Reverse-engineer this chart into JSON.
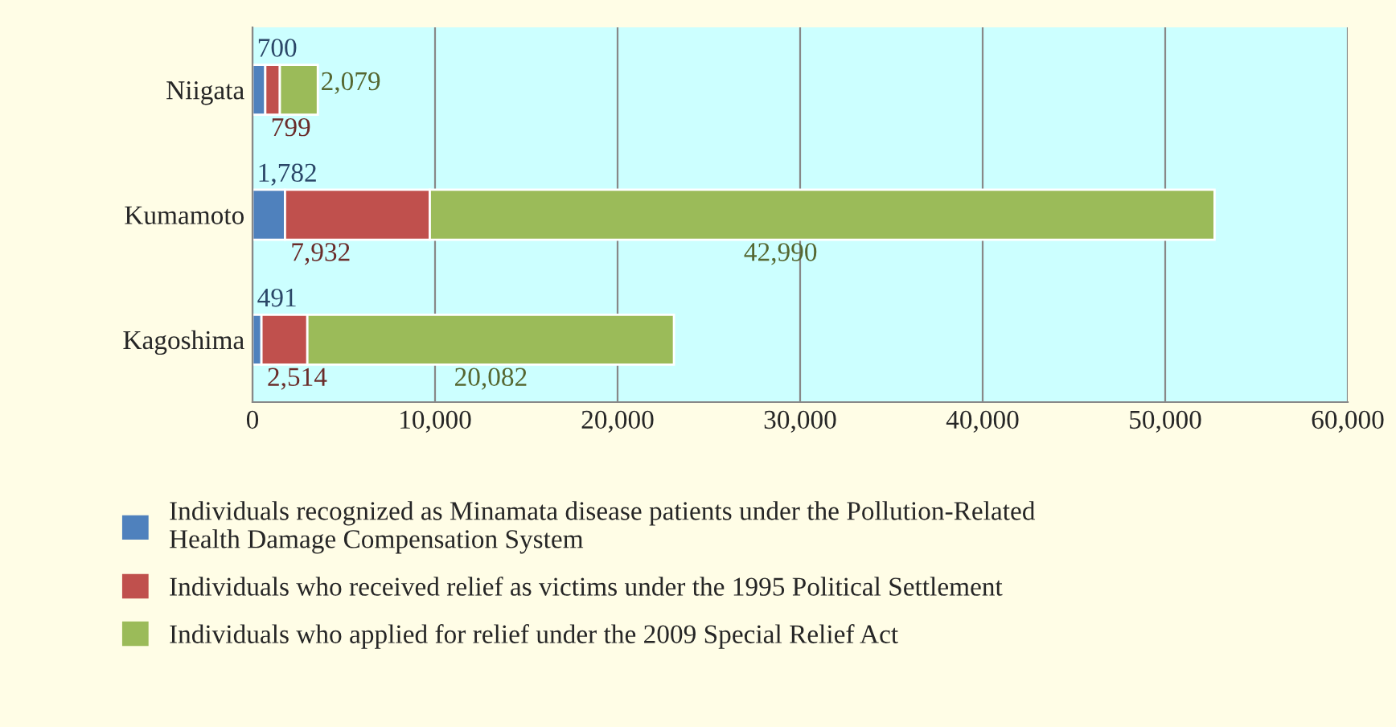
{
  "chart_data": {
    "type": "bar",
    "orientation": "horizontal",
    "stacked": true,
    "categories": [
      "Niigata",
      "Kumamoto",
      "Kagoshima"
    ],
    "series": [
      {
        "name": "Individuals recognized as Minamata disease patients under the Pollution-Related Health Damage Compensation System",
        "color": "#4f81bd",
        "values": [
          700,
          1782,
          491
        ],
        "value_labels": [
          "700",
          "1,782",
          "491"
        ]
      },
      {
        "name": "Individuals who received relief as victims under the 1995 Political Settlement",
        "color": "#c0504d",
        "values": [
          799,
          7932,
          2514
        ],
        "value_labels": [
          "799",
          "7,932",
          "2,514"
        ]
      },
      {
        "name": "Individuals who applied for relief under the 2009 Special Relief Act",
        "color": "#9bbb59",
        "values": [
          2079,
          42990,
          20082
        ],
        "value_labels": [
          "2,079",
          "42,990",
          "20,082"
        ]
      }
    ],
    "xlim": [
      0,
      60000
    ],
    "xticks": [
      {
        "value": 0,
        "label": "0"
      },
      {
        "value": 10000,
        "label": "10,000"
      },
      {
        "value": 20000,
        "label": "20,000"
      },
      {
        "value": 30000,
        "label": "30,000"
      },
      {
        "value": 40000,
        "label": "40,000"
      },
      {
        "value": 50000,
        "label": "50,000"
      },
      {
        "value": 60000,
        "label": "60,000"
      }
    ],
    "grid": "x",
    "legend": "bottom"
  }
}
